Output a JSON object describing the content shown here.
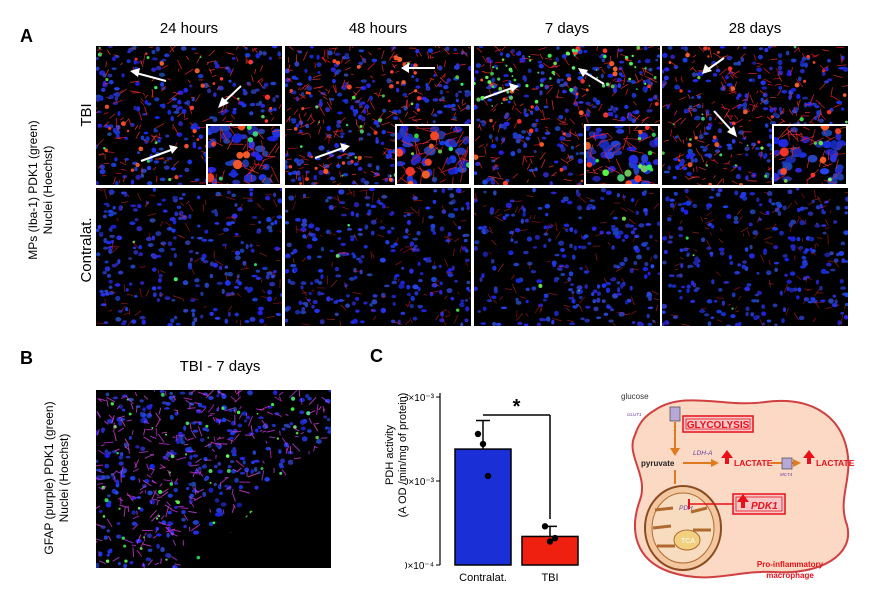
{
  "panel_a": {
    "letter": "A",
    "columns": [
      "24 hours",
      "48 hours",
      "7 days",
      "28 days"
    ],
    "rows": [
      "TBI",
      "Contralat."
    ],
    "side_label_line1": "MPs (Iba-1) PDK1 (green)",
    "side_label_line2": "Nuclei (Hoechst)"
  },
  "panel_b": {
    "letter": "B",
    "title": "TBI - 7 days",
    "side_label_line1": "GFAP (purple) PDK1 (green)",
    "side_label_line2": "Nuclei (Hoechst)"
  },
  "panel_c": {
    "letter": "C",
    "ylabel_line1": "PDH activity",
    "ylabel_line2": "(A OD /min/mg of protein)",
    "significance": "*",
    "chart_data": {
      "type": "bar",
      "categories": [
        "Contralat.",
        "TBI"
      ],
      "values": [
        0.00119,
        0.00067
      ],
      "errors": [
        0.00017,
        6e-05
      ],
      "points": [
        [
          0.00128,
          0.00122,
          0.00103
        ],
        [
          0.00073,
          0.00064,
          0.00066
        ]
      ],
      "colors": [
        "#1a2fd6",
        "#f02010"
      ],
      "ylim": [
        0.0005,
        0.0015
      ],
      "ytick_labels": [
        "5.0×10⁻⁴",
        "1.0×10⁻³",
        "1.5×10⁻³"
      ],
      "ytick_values": [
        0.0005,
        0.001,
        0.0015
      ]
    }
  },
  "diagram": {
    "glucose": "glucose",
    "glut1": "GLUT1",
    "glycolysis": "GLYCOLYSIS",
    "ldha": "LDH-A",
    "pyruvate": "pyruvate",
    "lactate_in": "LACTATE",
    "mct4": "MCT4",
    "lactate_out": "LACTATE",
    "pdh": "PDH",
    "tca": "TCA",
    "pdk1": "PDK1",
    "caption_line1": "Pro-inflammatory",
    "caption_line2": "macrophage",
    "colors": {
      "cell": "#fbd9c4",
      "cell_border": "#d04040",
      "red": "#e8101a",
      "orange": "#e07a20",
      "purple": "#6a3aa0"
    }
  }
}
